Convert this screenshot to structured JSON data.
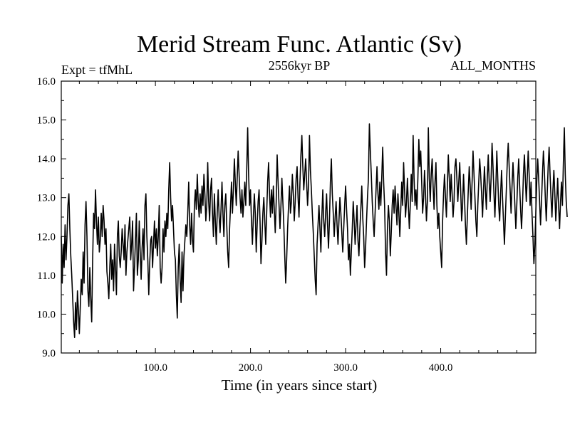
{
  "chart_data": {
    "type": "line",
    "title": "Merid Stream Func. Atlantic (Sv)",
    "subtitle_left": "Expt = tfMhL",
    "subtitle_center": "2556kyr BP",
    "subtitle_right": "ALL_MONTHS",
    "xlabel": "Time (in years since start)",
    "ylabel": "",
    "xlim": [
      1,
      500
    ],
    "ylim": [
      9.0,
      16.0
    ],
    "x_ticks": [
      100,
      200,
      300,
      400
    ],
    "x_tick_labels": [
      "100.0",
      "200.0",
      "300.0",
      "400.0"
    ],
    "y_ticks": [
      9,
      10,
      11,
      12,
      13,
      14,
      15,
      16
    ],
    "y_tick_labels": [
      "9.0",
      "10.0",
      "11.0",
      "12.0",
      "13.0",
      "14.0",
      "15.0",
      "16.0"
    ],
    "grid": false,
    "series": [
      {
        "name": "Merid Stream Func. Atlantic",
        "color": "#000000",
        "x_start": 1,
        "x_step": 1,
        "values": [
          12.0,
          10.8,
          11.8,
          11.2,
          12.3,
          11.4,
          12.0,
          12.8,
          13.1,
          12.2,
          11.5,
          11.0,
          10.4,
          9.8,
          9.4,
          10.3,
          9.6,
          10.6,
          10.1,
          9.5,
          10.2,
          10.9,
          10.5,
          11.6,
          10.8,
          12.3,
          12.9,
          12.0,
          10.6,
          10.2,
          11.2,
          10.4,
          9.8,
          11.4,
          12.6,
          12.2,
          13.2,
          12.4,
          11.8,
          12.5,
          11.6,
          11.9,
          12.6,
          12.0,
          12.8,
          12.4,
          11.8,
          12.2,
          11.1,
          10.8,
          10.4,
          11.2,
          11.8,
          10.9,
          11.4,
          10.6,
          11.8,
          11.2,
          10.5,
          12.0,
          12.4,
          11.5,
          11.2,
          11.6,
          12.2,
          11.8,
          11.4,
          12.3,
          11.0,
          11.6,
          11.9,
          12.2,
          12.5,
          11.4,
          11.8,
          12.4,
          10.6,
          11.2,
          11.9,
          12.6,
          11.0,
          11.4,
          12.4,
          11.6,
          10.9,
          11.7,
          12.2,
          11.4,
          12.8,
          13.1,
          12.0,
          11.4,
          10.5,
          11.3,
          11.9,
          12.0,
          11.2,
          11.8,
          12.4,
          11.7,
          12.2,
          11.5,
          12.0,
          12.8,
          11.2,
          10.8,
          11.2,
          12.2,
          11.6,
          12.4,
          12.0,
          12.6,
          12.2,
          13.2,
          13.9,
          13.0,
          12.4,
          12.8,
          12.2,
          11.6,
          11.4,
          10.5,
          9.9,
          11.2,
          11.8,
          10.9,
          10.3,
          11.6,
          10.6,
          11.5,
          11.9,
          12.3,
          12.0,
          12.6,
          13.4,
          12.3,
          11.8,
          12.6,
          11.9,
          11.6,
          12.8,
          13.2,
          12.7,
          13.6,
          12.9,
          12.5,
          13.1,
          12.6,
          13.3,
          12.8,
          13.6,
          13.1,
          12.4,
          12.8,
          13.9,
          12.9,
          12.4,
          13.2,
          13.5,
          12.6,
          12.0,
          13.1,
          12.4,
          11.8,
          12.6,
          13.2,
          12.5,
          12.1,
          12.7,
          13.4,
          12.6,
          12.0,
          12.8,
          13.1,
          12.3,
          11.6,
          11.2,
          12.2,
          12.8,
          13.4,
          12.6,
          13.2,
          14.0,
          13.4,
          12.8,
          13.5,
          14.2,
          13.6,
          13.0,
          12.6,
          13.2,
          12.5,
          12.9,
          13.4,
          12.8,
          13.7,
          14.8,
          13.6,
          12.8,
          13.2,
          12.4,
          11.8,
          12.5,
          13.1,
          12.6,
          11.6,
          12.3,
          12.9,
          13.2,
          12.4,
          11.3,
          11.9,
          12.6,
          13.0,
          12.4,
          11.8,
          12.6,
          13.4,
          13.9,
          13.1,
          12.5,
          13.2,
          12.6,
          13.3,
          12.7,
          12.1,
          12.9,
          14.1,
          13.4,
          12.8,
          12.2,
          12.8,
          13.5,
          12.9,
          12.3,
          11.5,
          10.8,
          11.4,
          12.2,
          12.8,
          13.3,
          12.6,
          12.9,
          13.6,
          13.1,
          12.4,
          12.9,
          13.5,
          13.8,
          13.0,
          12.5,
          13.4,
          14.1,
          14.6,
          13.8,
          13.2,
          13.6,
          14.0,
          13.4,
          12.8,
          13.3,
          14.6,
          13.7,
          13.2,
          12.6,
          12.1,
          11.5,
          10.9,
          10.5,
          11.8,
          12.3,
          12.8,
          12.2,
          11.6,
          12.5,
          13.2,
          12.4,
          12.0,
          12.6,
          13.1,
          12.3,
          11.7,
          12.4,
          13.4,
          14.0,
          13.1,
          12.6,
          12.0,
          12.5,
          12.9,
          12.3,
          11.8,
          12.4,
          13.0,
          12.6,
          12.1,
          11.6,
          12.2,
          12.8,
          13.3,
          12.7,
          12.2,
          11.4,
          11.8,
          11.0,
          11.6,
          12.2,
          12.9,
          12.4,
          11.8,
          12.3,
          12.8,
          11.9,
          11.5,
          12.2,
          12.7,
          13.3,
          12.5,
          12.0,
          11.2,
          11.7,
          12.4,
          13.0,
          13.5,
          14.9,
          14.2,
          13.6,
          12.9,
          12.4,
          12.0,
          12.6,
          13.2,
          13.8,
          13.1,
          12.7,
          13.4,
          12.8,
          13.5,
          14.3,
          13.4,
          12.8,
          11.6,
          11.0,
          12.2,
          12.8,
          12.4,
          11.5,
          12.1,
          12.8,
          13.2,
          12.6,
          13.3,
          12.8,
          12.3,
          13.1,
          12.6,
          12.0,
          12.7,
          13.4,
          12.8,
          13.9,
          13.2,
          12.5,
          12.9,
          13.5,
          12.8,
          12.2,
          12.8,
          13.6,
          12.9,
          14.6,
          13.5,
          12.8,
          13.2,
          12.7,
          13.5,
          14.5,
          13.8,
          14.2,
          13.4,
          12.6,
          13.0,
          13.7,
          13.1,
          12.4,
          12.9,
          14.8,
          13.5,
          12.9,
          13.6,
          14.0,
          13.3,
          12.7,
          13.4,
          13.9,
          12.8,
          12.2,
          12.6,
          12.0,
          11.6,
          11.2,
          12.4,
          13.1,
          13.6,
          13.0,
          12.5,
          13.3,
          14.1,
          13.5,
          12.9,
          13.6,
          13.1,
          12.5,
          12.9,
          13.8,
          14.0,
          13.5,
          12.9,
          13.4,
          13.9,
          13.2,
          12.4,
          12.8,
          13.6,
          13.0,
          12.3,
          11.8,
          12.5,
          13.2,
          13.8,
          13.3,
          12.7,
          13.4,
          14.2,
          13.6,
          13.0,
          12.4,
          12.0,
          12.8,
          13.4,
          14.0,
          13.6,
          13.1,
          12.5,
          13.2,
          13.8,
          13.2,
          12.7,
          13.5,
          14.1,
          13.4,
          12.9,
          13.5,
          14.4,
          13.8,
          13.1,
          12.5,
          13.3,
          14.2,
          13.5,
          12.8,
          12.4,
          13.1,
          13.7,
          13.0,
          12.4,
          11.8,
          12.5,
          13.2,
          13.9,
          14.4,
          13.8,
          13.2,
          12.6,
          13.3,
          13.9,
          13.4,
          12.8,
          12.2,
          12.8,
          13.5,
          14.0,
          13.3,
          12.7,
          12.2,
          12.8,
          13.6,
          14.1,
          13.5,
          12.9,
          13.5,
          14.2,
          13.6,
          12.8,
          13.4,
          12.6,
          12.0,
          11.3,
          11.8,
          12.6,
          13.4,
          14.0,
          13.5,
          12.9,
          12.3,
          12.9,
          13.6,
          14.2,
          13.7,
          13.0,
          12.4,
          13.1,
          13.8,
          14.3,
          13.6,
          13.0,
          12.5,
          13.2,
          13.7,
          13.1,
          12.4,
          12.9,
          13.5,
          12.8,
          12.2,
          12.9,
          13.4,
          12.8,
          13.9,
          14.8,
          13.6,
          12.9,
          12.5
        ]
      }
    ]
  }
}
